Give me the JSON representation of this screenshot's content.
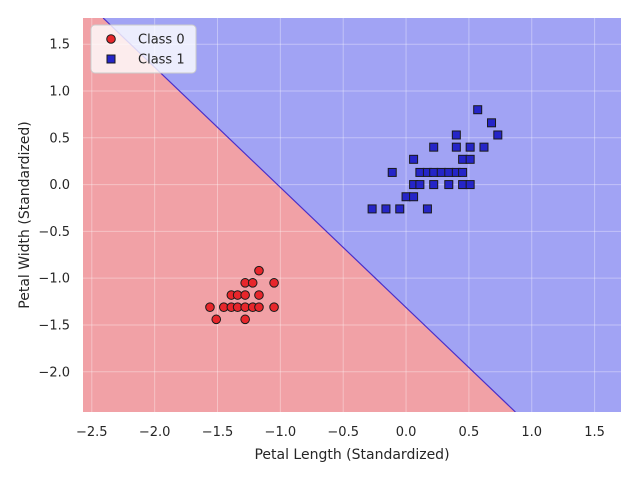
{
  "chart_data": {
    "type": "scatter",
    "title": "",
    "xlabel": "Petal Length (Standardized)",
    "ylabel": "Petal Width (Standardized)",
    "xlim": [
      -2.57,
      1.71
    ],
    "ylim": [
      -2.43,
      1.78
    ],
    "xticks": [
      -2.5,
      -2.0,
      -1.5,
      -1.0,
      -0.5,
      0.0,
      0.5,
      1.0,
      1.5
    ],
    "xtick_labels": [
      "−2.5",
      "−2.0",
      "−1.5",
      "−1.0",
      "−0.5",
      "0.0",
      "0.5",
      "1.0",
      "1.5"
    ],
    "yticks": [
      -2.0,
      -1.5,
      -1.0,
      -0.5,
      0.0,
      0.5,
      1.0,
      1.5
    ],
    "ytick_labels": [
      "−2.0",
      "−1.5",
      "−1.0",
      "−0.5",
      "0.0",
      "0.5",
      "1.0",
      "1.5"
    ],
    "grid": true,
    "legend_position": "top-left",
    "decision_boundary": {
      "points": [
        [
          -2.41,
          1.78
        ],
        [
          0.87,
          -2.43
        ]
      ],
      "line_color": "#4b2fc9",
      "region_colors": {
        "class_0": "#f1a1a6",
        "class_1": "#a1a3f4"
      }
    },
    "series": [
      {
        "name": "Class 0",
        "marker": "circle",
        "color": "#e8262b",
        "points": [
          [
            -1.56,
            -1.31
          ],
          [
            -1.51,
            -1.44
          ],
          [
            -1.45,
            -1.31
          ],
          [
            -1.39,
            -1.18
          ],
          [
            -1.39,
            -1.31
          ],
          [
            -1.34,
            -1.18
          ],
          [
            -1.34,
            -1.31
          ],
          [
            -1.28,
            -1.05
          ],
          [
            -1.28,
            -1.18
          ],
          [
            -1.28,
            -1.31
          ],
          [
            -1.28,
            -1.44
          ],
          [
            -1.22,
            -1.05
          ],
          [
            -1.22,
            -1.31
          ],
          [
            -1.17,
            -0.92
          ],
          [
            -1.17,
            -1.18
          ],
          [
            -1.17,
            -1.31
          ],
          [
            -1.05,
            -1.05
          ],
          [
            -1.05,
            -1.31
          ]
        ]
      },
      {
        "name": "Class 1",
        "marker": "square",
        "color": "#2525c8",
        "points": [
          [
            -0.27,
            -0.26
          ],
          [
            -0.16,
            -0.26
          ],
          [
            -0.11,
            0.13
          ],
          [
            -0.05,
            -0.26
          ],
          [
            0.0,
            -0.13
          ],
          [
            0.06,
            -0.13
          ],
          [
            0.06,
            0.0
          ],
          [
            0.06,
            0.27
          ],
          [
            0.11,
            0.0
          ],
          [
            0.11,
            0.13
          ],
          [
            0.17,
            0.13
          ],
          [
            0.17,
            -0.26
          ],
          [
            0.22,
            0.0
          ],
          [
            0.22,
            0.13
          ],
          [
            0.22,
            0.4
          ],
          [
            0.28,
            0.13
          ],
          [
            0.34,
            0.0
          ],
          [
            0.34,
            0.13
          ],
          [
            0.4,
            0.13
          ],
          [
            0.4,
            0.4
          ],
          [
            0.4,
            0.53
          ],
          [
            0.45,
            0.0
          ],
          [
            0.45,
            0.13
          ],
          [
            0.45,
            0.27
          ],
          [
            0.51,
            0.0
          ],
          [
            0.51,
            0.27
          ],
          [
            0.51,
            0.4
          ],
          [
            0.57,
            0.8
          ],
          [
            0.62,
            0.4
          ],
          [
            0.68,
            0.66
          ],
          [
            0.73,
            0.53
          ]
        ]
      }
    ]
  }
}
